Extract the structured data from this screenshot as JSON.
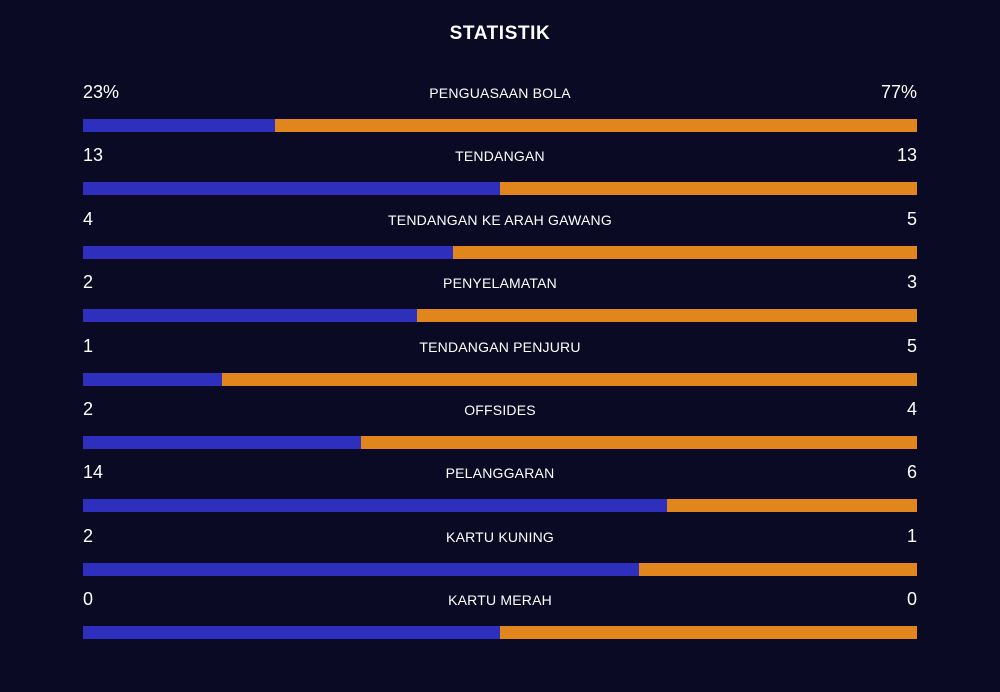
{
  "header": {
    "title": "STATISTIK"
  },
  "colors": {
    "background": "#0a0a24",
    "home": "#2f2fbd",
    "away": "#e0861c"
  },
  "stats": [
    {
      "label": "PENGUASAAN BOLA",
      "home": "23%",
      "away": "77%",
      "home_share": 0.23
    },
    {
      "label": "TENDANGAN",
      "home": "13",
      "away": "13",
      "home_share": 0.5
    },
    {
      "label": "TENDANGAN KE ARAH GAWANG",
      "home": "4",
      "away": "5",
      "home_share": 0.444
    },
    {
      "label": "PENYELAMATAN",
      "home": "2",
      "away": "3",
      "home_share": 0.4
    },
    {
      "label": "TENDANGAN PENJURU",
      "home": "1",
      "away": "5",
      "home_share": 0.1667
    },
    {
      "label": "OFFSIDES",
      "home": "2",
      "away": "4",
      "home_share": 0.3333
    },
    {
      "label": "PELANGGARAN",
      "home": "14",
      "away": "6",
      "home_share": 0.7
    },
    {
      "label": "KARTU KUNING",
      "home": "2",
      "away": "1",
      "home_share": 0.6667
    },
    {
      "label": "KARTU MERAH",
      "home": "0",
      "away": "0",
      "home_share": 0.5
    }
  ]
}
